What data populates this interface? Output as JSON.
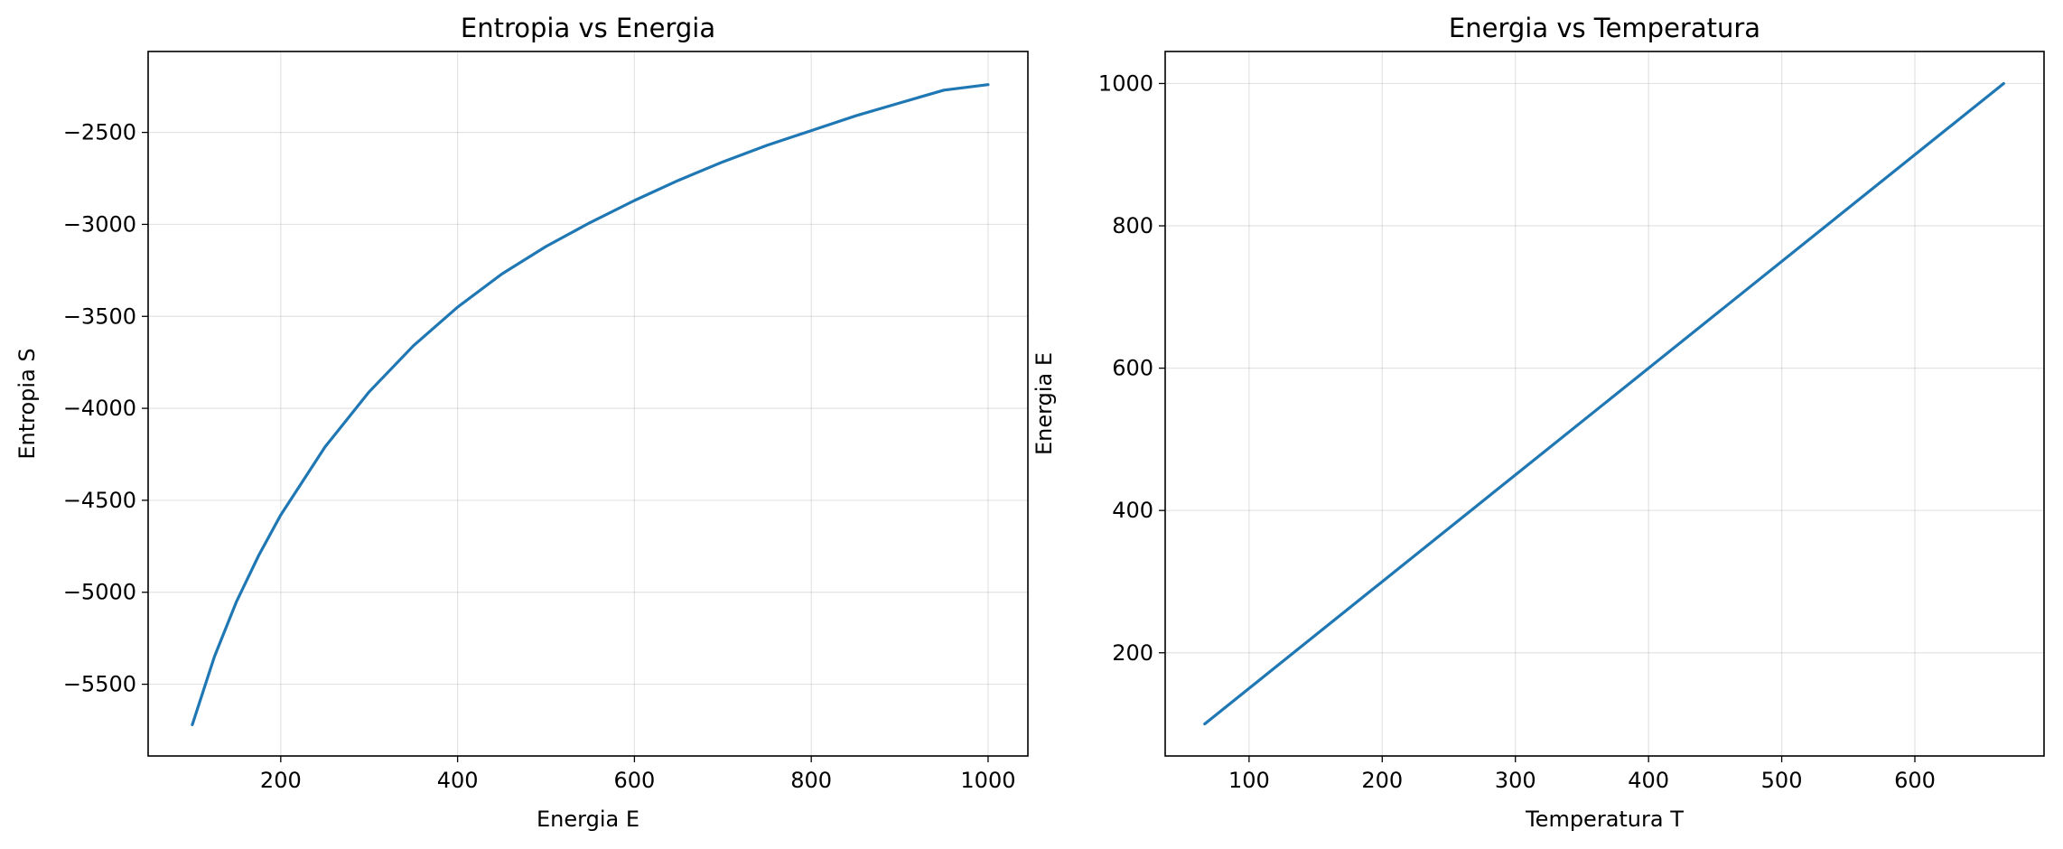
{
  "chart_data": [
    {
      "type": "line",
      "title": "Entropia vs Energia",
      "xlabel": "Energia E",
      "ylabel": "Entropia S",
      "xlim": [
        50,
        1045
      ],
      "ylim": [
        -5890,
        -2060
      ],
      "x_ticks": [
        200,
        400,
        600,
        800,
        1000
      ],
      "x_tick_labels": [
        "200",
        "400",
        "600",
        "800",
        "1000"
      ],
      "y_ticks": [
        -5500,
        -5000,
        -4500,
        -4000,
        -3500,
        -3000,
        -2500
      ],
      "y_tick_labels": [
        "−5500",
        "−5000",
        "−4500",
        "−4000",
        "−3500",
        "−3000",
        "−2500"
      ],
      "grid": true,
      "color": "#1f77b4",
      "series": [
        {
          "x": [
            100,
            125,
            150,
            175,
            200,
            250,
            300,
            350,
            400,
            450,
            500,
            550,
            600,
            650,
            700,
            750,
            800,
            850,
            900,
            950,
            1000
          ],
          "y": [
            -5720,
            -5350,
            -5050,
            -4800,
            -4580,
            -4210,
            -3910,
            -3660,
            -3450,
            -3270,
            -3120,
            -2990,
            -2870,
            -2760,
            -2660,
            -2570,
            -2490,
            -2410,
            -2340,
            -2270,
            -2240
          ]
        }
      ]
    },
    {
      "type": "line",
      "title": "Energia vs Temperatura",
      "xlabel": "Temperatura T",
      "ylabel": "Energia E",
      "xlim": [
        37,
        697
      ],
      "ylim": [
        55,
        1045
      ],
      "x_ticks": [
        100,
        200,
        300,
        400,
        500,
        600
      ],
      "x_tick_labels": [
        "100",
        "200",
        "300",
        "400",
        "500",
        "600"
      ],
      "y_ticks": [
        200,
        400,
        600,
        800,
        1000
      ],
      "y_tick_labels": [
        "200",
        "400",
        "600",
        "800",
        "1000"
      ],
      "grid": true,
      "color": "#1f77b4",
      "series": [
        {
          "x": [
            66.7,
            666.7
          ],
          "y": [
            100,
            1000
          ]
        }
      ]
    }
  ]
}
